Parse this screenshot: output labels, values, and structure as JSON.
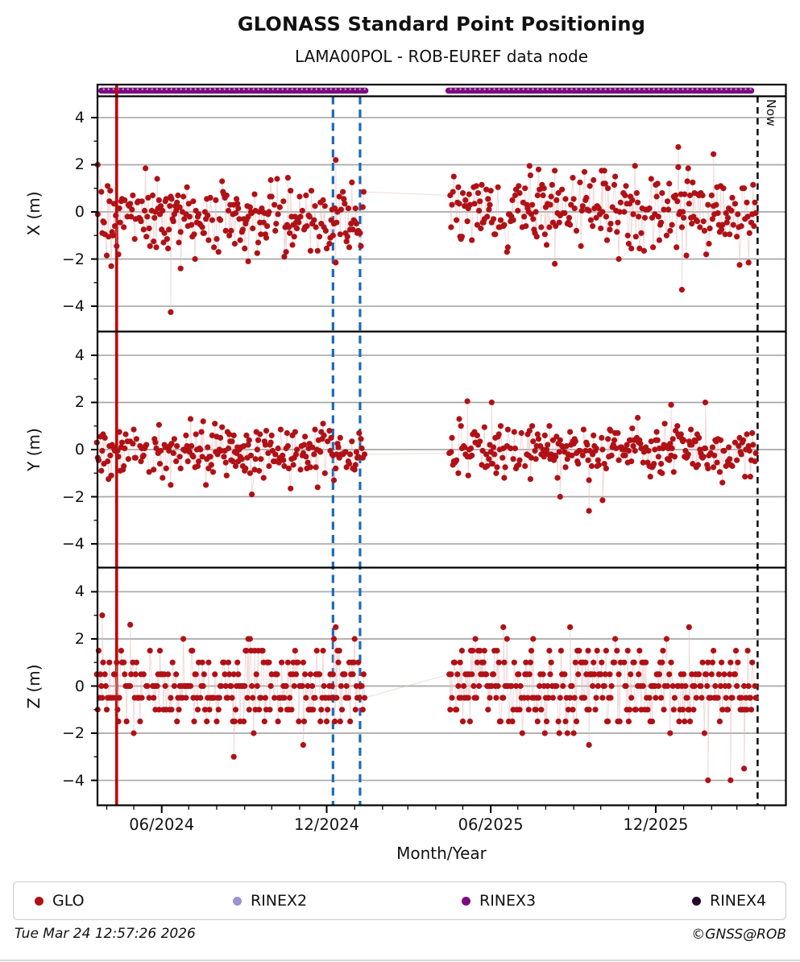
{
  "header": {
    "title": "GLONASS Standard Point Positioning",
    "subtitle": "LAMA00POL - ROB-EUREF data node"
  },
  "axes": {
    "xlabel": "Month/Year",
    "now_label": "Now",
    "ylabels": [
      "X (m)",
      "Y (m)",
      "Z (m)"
    ],
    "ytick_labels": [
      "4",
      "2",
      "0",
      "−2",
      "−4"
    ],
    "ytick_values": [
      4,
      2,
      0,
      -2,
      -4
    ],
    "yminor_values": [
      3,
      1,
      -1,
      -3
    ],
    "xtick_labels": [
      "06/2024",
      "12/2024",
      "06/2025",
      "12/2025"
    ]
  },
  "legend": {
    "items": [
      {
        "label": "GLO",
        "color": "#b01116"
      },
      {
        "label": "RINEX2",
        "color": "#9a93cf"
      },
      {
        "label": "RINEX3",
        "color": "#7d0b80"
      },
      {
        "label": "RINEX4",
        "color": "#26062e"
      }
    ]
  },
  "footer": {
    "timestamp": "Tue Mar 24 12:57:26 2026",
    "copyright": "©GNSS@ROB"
  },
  "chart_data": {
    "type": "scatter",
    "title": "GLONASS Standard Point Positioning",
    "subtitle": "LAMA00POL - ROB-EUREF data node",
    "xlabel": "Month/Year",
    "x_range": [
      "2024-03-22",
      "2026-04-24"
    ],
    "x_major_ticks": [
      {
        "date": "2024-06-01",
        "label": "06/2024"
      },
      {
        "date": "2024-12-01",
        "label": "12/2024"
      },
      {
        "date": "2025-06-01",
        "label": "06/2025"
      },
      {
        "date": "2025-12-01",
        "label": "12/2025"
      }
    ],
    "x_minor_tick_interval_months": 1,
    "grid": "horizontal-only",
    "seed": 20260324,
    "point_radius_px": 3.6,
    "colors": {
      "point": "#b01116",
      "connector": "#e3bcbc",
      "grid": "#a8a8a8",
      "frame": "#000000",
      "red_event_line": "#c40000",
      "blue_event_line": "#1c6ab5",
      "now_line": "#111111",
      "availability_bar": "#7d0b80",
      "availability_dots": "#b9a9d9"
    },
    "events": {
      "red_solid_line_date": "2024-04-12",
      "blue_dashed_line_dates": [
        "2024-12-08",
        "2025-01-07"
      ],
      "now_line_date": "2026-03-24",
      "now_label": "Now"
    },
    "availability": {
      "series": "RINEX3",
      "intervals": [
        [
          "2024-03-26",
          "2025-01-13"
        ],
        [
          "2025-04-15",
          "2026-03-17"
        ]
      ]
    },
    "data_gap": [
      "2025-01-13",
      "2025-04-15"
    ],
    "panels": [
      {
        "name": "X",
        "ylabel": "X (m)",
        "ylim": [
          -5.05,
          4.9
        ],
        "yticks": [
          4,
          2,
          0,
          -2,
          -4
        ],
        "yminor": [
          3,
          1,
          -1,
          -3
        ],
        "segments": [
          {
            "start": "2024-03-21",
            "end": "2025-01-12",
            "mean": -0.25,
            "sd": 0.78,
            "clip": 2.2,
            "cadence_days": 1,
            "fill": 0.8,
            "round": 0.05
          },
          {
            "start": "2025-04-16",
            "end": "2026-03-22",
            "mean": -0.05,
            "sd": 0.85,
            "clip": 2.2,
            "cadence_days": 1,
            "fill": 0.8,
            "round": 0.05
          }
        ],
        "outliers": [
          [
            "2024-03-22",
            2.0
          ],
          [
            "2024-06-11",
            -4.25
          ],
          [
            "2024-06-22",
            -2.4
          ],
          [
            "2024-09-05",
            -2.1
          ],
          [
            "2024-12-11",
            2.2
          ],
          [
            "2025-08-11",
            -2.2
          ],
          [
            "2025-12-26",
            2.75
          ],
          [
            "2025-12-30",
            -3.3
          ],
          [
            "2026-02-03",
            2.45
          ]
        ]
      },
      {
        "name": "Y",
        "ylabel": "Y (m)",
        "ylim": [
          -5.05,
          4.9
        ],
        "yticks": [
          4,
          2,
          0,
          -2,
          -4
        ],
        "yminor": [
          3,
          1,
          -1,
          -3
        ],
        "segments": [
          {
            "start": "2024-03-21",
            "end": "2025-01-12",
            "mean": -0.08,
            "sd": 0.5,
            "clip": 1.7,
            "cadence_days": 1,
            "fill": 0.8,
            "round": 0.05
          },
          {
            "start": "2025-04-16",
            "end": "2026-03-22",
            "mean": 0.0,
            "sd": 0.55,
            "clip": 1.7,
            "cadence_days": 1,
            "fill": 0.8,
            "round": 0.05
          }
        ],
        "outliers": [
          [
            "2024-09-09",
            -1.9
          ],
          [
            "2025-05-06",
            2.05
          ],
          [
            "2025-06-02",
            2.0
          ],
          [
            "2025-08-17",
            -2.0
          ],
          [
            "2025-09-18",
            -2.6
          ],
          [
            "2025-10-03",
            -2.15
          ],
          [
            "2025-12-18",
            1.9
          ],
          [
            "2026-01-25",
            2.0
          ]
        ]
      },
      {
        "name": "Z",
        "ylabel": "Z (m)",
        "ylim": [
          -5.05,
          4.9
        ],
        "yticks": [
          4,
          2,
          0,
          -2,
          -4
        ],
        "yminor": [
          3,
          1,
          -1,
          -3
        ],
        "segments": [
          {
            "start": "2024-03-21",
            "end": "2025-01-12",
            "mean": 0.05,
            "sd": 0.92,
            "clip": 2.1,
            "cadence_days": 1,
            "fill": 0.9,
            "quantize": 0.5
          },
          {
            "start": "2025-04-16",
            "end": "2026-03-22",
            "mean": 0.0,
            "sd": 0.95,
            "clip": 2.1,
            "cadence_days": 1,
            "fill": 0.9,
            "quantize": 0.5
          }
        ],
        "outliers": [
          [
            "2024-03-27",
            3.0
          ],
          [
            "2024-04-27",
            2.6
          ],
          [
            "2024-08-20",
            -3.0
          ],
          [
            "2024-11-05",
            -2.5
          ],
          [
            "2024-12-11",
            2.5
          ],
          [
            "2025-06-15",
            2.5
          ],
          [
            "2025-08-28",
            2.5
          ],
          [
            "2025-09-18",
            -2.5
          ],
          [
            "2026-01-07",
            2.5
          ],
          [
            "2026-01-28",
            -4.0
          ],
          [
            "2026-02-22",
            -4.0
          ],
          [
            "2026-03-09",
            -3.5
          ]
        ]
      }
    ]
  }
}
